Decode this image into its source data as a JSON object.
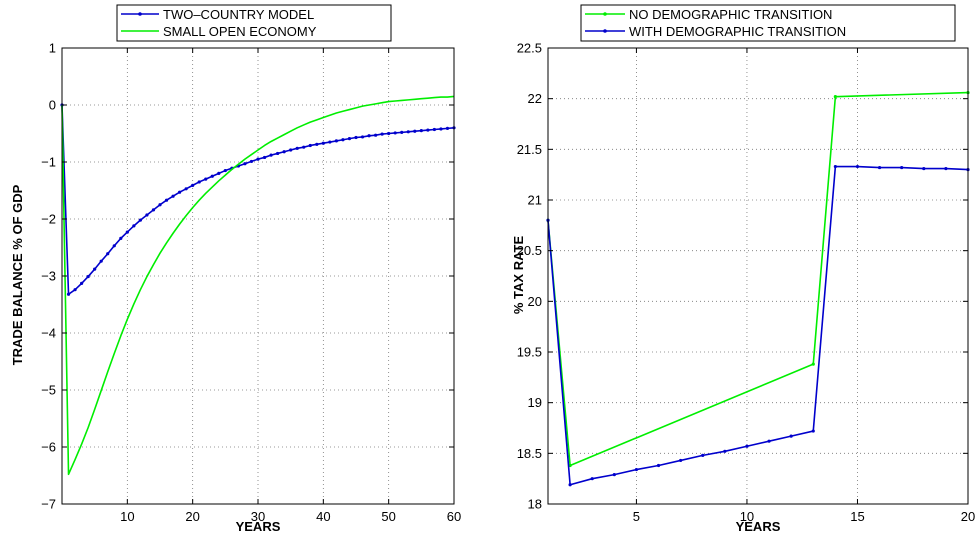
{
  "chart_data": [
    {
      "type": "line",
      "title": "",
      "xlabel": "YEARS",
      "ylabel": "TRADE BALANCE % OF GDP",
      "xlim": [
        0,
        60
      ],
      "ylim": [
        -7,
        1
      ],
      "xticks": [
        10,
        20,
        30,
        40,
        50,
        60
      ],
      "yticks": [
        -7,
        -6,
        -5,
        -4,
        -3,
        -2,
        -1,
        0,
        1
      ],
      "grid": true,
      "legend_position": "top",
      "series": [
        {
          "name": "TWO–COUNTRY MODEL",
          "color": "#0000cc",
          "markers": true,
          "x": [
            0,
            1,
            2,
            3,
            4,
            5,
            6,
            7,
            8,
            9,
            10,
            11,
            12,
            13,
            14,
            15,
            16,
            17,
            18,
            19,
            20,
            21,
            22,
            23,
            24,
            25,
            26,
            27,
            28,
            29,
            30,
            31,
            32,
            33,
            34,
            35,
            36,
            37,
            38,
            39,
            40,
            41,
            42,
            43,
            44,
            45,
            46,
            47,
            48,
            49,
            50,
            51,
            52,
            53,
            54,
            55,
            56,
            57,
            58,
            59,
            60
          ],
          "y": [
            0,
            -3.32,
            -3.24,
            -3.13,
            -3.01,
            -2.88,
            -2.74,
            -2.61,
            -2.47,
            -2.34,
            -2.23,
            -2.12,
            -2.02,
            -1.93,
            -1.84,
            -1.75,
            -1.67,
            -1.6,
            -1.53,
            -1.47,
            -1.41,
            -1.35,
            -1.3,
            -1.25,
            -1.2,
            -1.15,
            -1.11,
            -1.07,
            -1.03,
            -0.99,
            -0.95,
            -0.92,
            -0.88,
            -0.85,
            -0.82,
            -0.79,
            -0.76,
            -0.74,
            -0.71,
            -0.69,
            -0.67,
            -0.65,
            -0.63,
            -0.61,
            -0.59,
            -0.57,
            -0.56,
            -0.54,
            -0.53,
            -0.51,
            -0.5,
            -0.49,
            -0.48,
            -0.47,
            -0.46,
            -0.45,
            -0.44,
            -0.43,
            -0.42,
            -0.41,
            -0.4
          ]
        },
        {
          "name": "SMALL OPEN ECONOMY",
          "color": "#00ee00",
          "markers": false,
          "x": [
            0,
            1,
            2,
            3,
            4,
            5,
            6,
            7,
            8,
            9,
            10,
            11,
            12,
            13,
            14,
            15,
            16,
            17,
            18,
            19,
            20,
            21,
            22,
            23,
            24,
            25,
            26,
            27,
            28,
            29,
            30,
            31,
            32,
            33,
            34,
            35,
            36,
            37,
            38,
            39,
            40,
            41,
            42,
            43,
            44,
            45,
            46,
            47,
            48,
            49,
            50,
            51,
            52,
            53,
            54,
            55,
            56,
            57,
            58,
            59,
            60
          ],
          "y": [
            0,
            -6.48,
            -6.22,
            -5.95,
            -5.66,
            -5.34,
            -5.01,
            -4.68,
            -4.36,
            -4.05,
            -3.76,
            -3.49,
            -3.24,
            -3.01,
            -2.8,
            -2.6,
            -2.42,
            -2.25,
            -2.09,
            -1.94,
            -1.8,
            -1.67,
            -1.55,
            -1.44,
            -1.33,
            -1.23,
            -1.13,
            -1.04,
            -0.95,
            -0.87,
            -0.79,
            -0.71,
            -0.64,
            -0.58,
            -0.52,
            -0.46,
            -0.4,
            -0.35,
            -0.3,
            -0.26,
            -0.22,
            -0.18,
            -0.14,
            -0.11,
            -0.08,
            -0.05,
            -0.02,
            0.0,
            0.02,
            0.04,
            0.06,
            0.07,
            0.08,
            0.09,
            0.1,
            0.11,
            0.12,
            0.13,
            0.14,
            0.14,
            0.15
          ]
        }
      ]
    },
    {
      "type": "line",
      "title": "",
      "xlabel": "YEARS",
      "ylabel": "% TAX RATE",
      "xlim": [
        1,
        20
      ],
      "ylim": [
        18,
        22.5
      ],
      "xticks": [
        5,
        10,
        15,
        20
      ],
      "yticks": [
        18,
        18.5,
        19,
        19.5,
        20,
        20.5,
        21,
        21.5,
        22,
        22.5
      ],
      "grid": true,
      "legend_position": "top",
      "series": [
        {
          "name": "NO DEMOGRAPHIC TRANSITION",
          "color": "#00ee00",
          "markers": true,
          "x": [
            1,
            2,
            13,
            14,
            20
          ],
          "y": [
            20.8,
            18.38,
            19.38,
            22.02,
            22.06
          ]
        },
        {
          "name": "WITH DEMOGRAPHIC TRANSITION",
          "color": "#0000cc",
          "markers": true,
          "x": [
            1,
            2,
            3,
            4,
            5,
            6,
            7,
            8,
            9,
            10,
            11,
            12,
            13,
            14,
            15,
            16,
            17,
            18,
            19,
            20
          ],
          "y": [
            20.8,
            18.19,
            18.25,
            18.29,
            18.34,
            18.38,
            18.43,
            18.48,
            18.52,
            18.57,
            18.62,
            18.67,
            18.72,
            21.33,
            21.33,
            21.32,
            21.32,
            21.31,
            21.31,
            21.3
          ]
        }
      ]
    }
  ]
}
